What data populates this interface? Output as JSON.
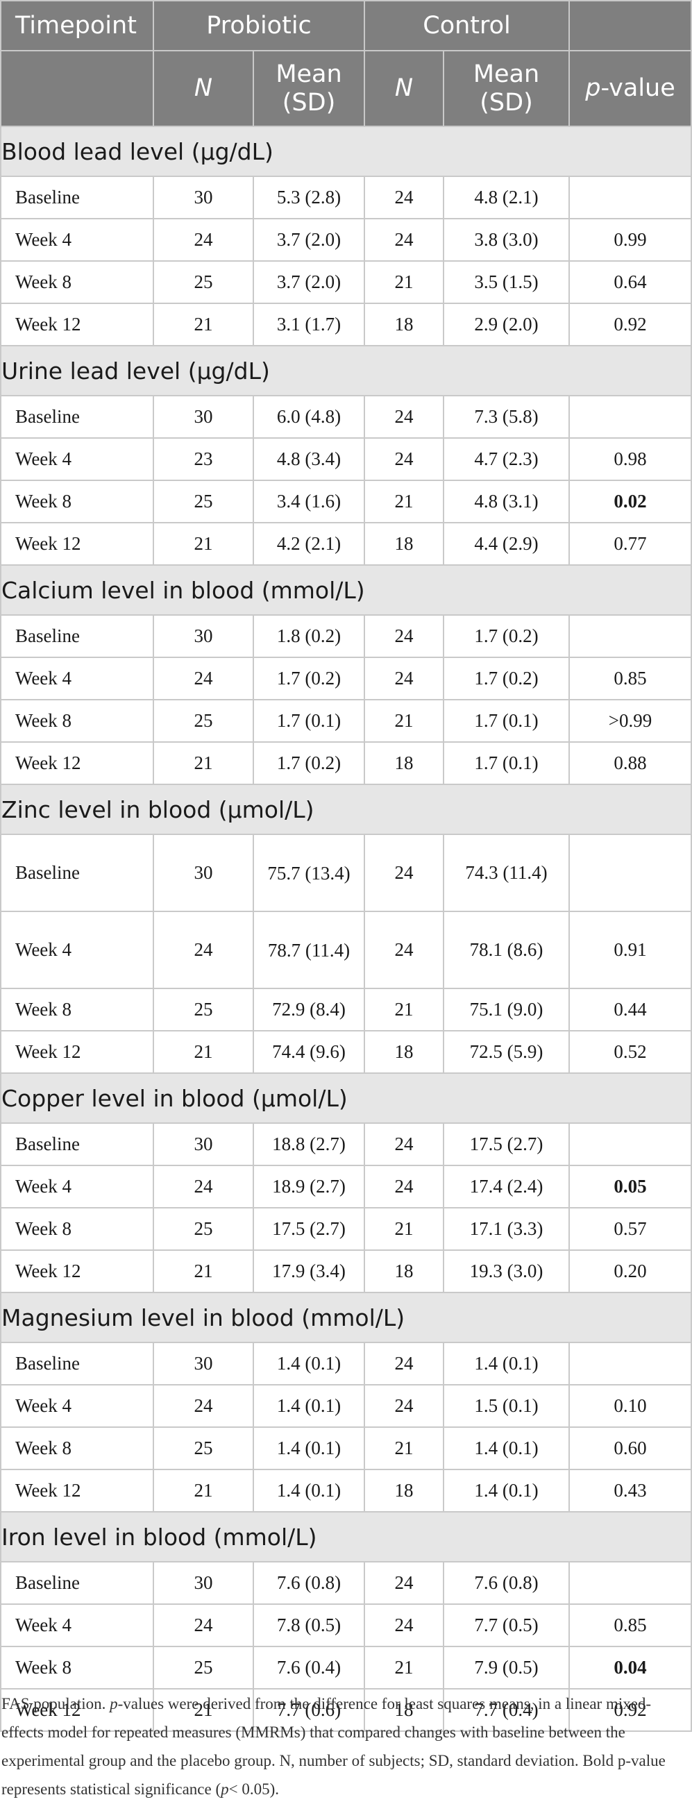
{
  "header": {
    "timepoint": "Timepoint",
    "probiotic": "Probiotic",
    "control": "Control",
    "n_label": "N",
    "mean_sd_line1": "Mean",
    "mean_sd_line2": "(SD)",
    "p_value_italic": "p",
    "p_value_rest": "-value"
  },
  "sections": [
    {
      "title": "Blood lead level (µg/dL)",
      "rows": [
        {
          "timepoint": "Baseline",
          "probiotic_n": "30",
          "probiotic_mean_sd": "5.3 (2.8)",
          "control_n": "24",
          "control_mean_sd": "4.8 (2.1)",
          "p_value": "",
          "bold": false
        },
        {
          "timepoint": "Week 4",
          "probiotic_n": "24",
          "probiotic_mean_sd": "3.7 (2.0)",
          "control_n": "24",
          "control_mean_sd": "3.8 (3.0)",
          "p_value": "0.99",
          "bold": false
        },
        {
          "timepoint": "Week 8",
          "probiotic_n": "25",
          "probiotic_mean_sd": "3.7 (2.0)",
          "control_n": "21",
          "control_mean_sd": "3.5 (1.5)",
          "p_value": "0.64",
          "bold": false
        },
        {
          "timepoint": "Week 12",
          "probiotic_n": "21",
          "probiotic_mean_sd": "3.1 (1.7)",
          "control_n": "18",
          "control_mean_sd": "2.9 (2.0)",
          "p_value": "0.92",
          "bold": false
        }
      ]
    },
    {
      "title": "Urine lead level (µg/dL)",
      "rows": [
        {
          "timepoint": "Baseline",
          "probiotic_n": "30",
          "probiotic_mean_sd": "6.0 (4.8)",
          "control_n": "24",
          "control_mean_sd": "7.3 (5.8)",
          "p_value": "",
          "bold": false
        },
        {
          "timepoint": "Week 4",
          "probiotic_n": "23",
          "probiotic_mean_sd": "4.8 (3.4)",
          "control_n": "24",
          "control_mean_sd": "4.7 (2.3)",
          "p_value": "0.98",
          "bold": false
        },
        {
          "timepoint": "Week 8",
          "probiotic_n": "25",
          "probiotic_mean_sd": "3.4 (1.6)",
          "control_n": "21",
          "control_mean_sd": "4.8 (3.1)",
          "p_value": "0.02",
          "bold": true
        },
        {
          "timepoint": "Week 12",
          "probiotic_n": "21",
          "probiotic_mean_sd": "4.2 (2.1)",
          "control_n": "18",
          "control_mean_sd": "4.4 (2.9)",
          "p_value": "0.77",
          "bold": false
        }
      ]
    },
    {
      "title": "Calcium level in blood (mmol/L)",
      "rows": [
        {
          "timepoint": "Baseline",
          "probiotic_n": "30",
          "probiotic_mean_sd": "1.8 (0.2)",
          "control_n": "24",
          "control_mean_sd": "1.7 (0.2)",
          "p_value": "",
          "bold": false
        },
        {
          "timepoint": "Week 4",
          "probiotic_n": "24",
          "probiotic_mean_sd": "1.7 (0.2)",
          "control_n": "24",
          "control_mean_sd": "1.7 (0.2)",
          "p_value": "0.85",
          "bold": false
        },
        {
          "timepoint": "Week 8",
          "probiotic_n": "25",
          "probiotic_mean_sd": "1.7 (0.1)",
          "control_n": "21",
          "control_mean_sd": "1.7 (0.1)",
          "p_value": ">0.99",
          "bold": false
        },
        {
          "timepoint": "Week 12",
          "probiotic_n": "21",
          "probiotic_mean_sd": "1.7 (0.2)",
          "control_n": "18",
          "control_mean_sd": "1.7 (0.1)",
          "p_value": "0.88",
          "bold": false
        }
      ]
    },
    {
      "title": "Zinc level in blood (µmol/L)",
      "rows": [
        {
          "timepoint": "Baseline",
          "probiotic_n": "30",
          "probiotic_mean_sd": "75.7 (13.4)",
          "control_n": "24",
          "control_mean_sd": "74.3 (11.4)",
          "p_value": "",
          "bold": false,
          "tall": true
        },
        {
          "timepoint": "Week 4",
          "probiotic_n": "24",
          "probiotic_mean_sd": "78.7 (11.4)",
          "control_n": "24",
          "control_mean_sd": "78.1 (8.6)",
          "p_value": "0.91",
          "bold": false,
          "tall": true
        },
        {
          "timepoint": "Week 8",
          "probiotic_n": "25",
          "probiotic_mean_sd": "72.9 (8.4)",
          "control_n": "21",
          "control_mean_sd": "75.1 (9.0)",
          "p_value": "0.44",
          "bold": false
        },
        {
          "timepoint": "Week 12",
          "probiotic_n": "21",
          "probiotic_mean_sd": "74.4 (9.6)",
          "control_n": "18",
          "control_mean_sd": "72.5 (5.9)",
          "p_value": "0.52",
          "bold": false
        }
      ]
    },
    {
      "title": "Copper level in blood (µmol/L)",
      "rows": [
        {
          "timepoint": "Baseline",
          "probiotic_n": "30",
          "probiotic_mean_sd": "18.8 (2.7)",
          "control_n": "24",
          "control_mean_sd": "17.5 (2.7)",
          "p_value": "",
          "bold": false
        },
        {
          "timepoint": "Week 4",
          "probiotic_n": "24",
          "probiotic_mean_sd": "18.9 (2.7)",
          "control_n": "24",
          "control_mean_sd": "17.4 (2.4)",
          "p_value": "0.05",
          "bold": true
        },
        {
          "timepoint": "Week 8",
          "probiotic_n": "25",
          "probiotic_mean_sd": "17.5 (2.7)",
          "control_n": "21",
          "control_mean_sd": "17.1 (3.3)",
          "p_value": "0.57",
          "bold": false
        },
        {
          "timepoint": "Week 12",
          "probiotic_n": "21",
          "probiotic_mean_sd": "17.9 (3.4)",
          "control_n": "18",
          "control_mean_sd": "19.3 (3.0)",
          "p_value": "0.20",
          "bold": false
        }
      ]
    },
    {
      "title": "Magnesium level in blood (mmol/L)",
      "rows": [
        {
          "timepoint": "Baseline",
          "probiotic_n": "30",
          "probiotic_mean_sd": "1.4 (0.1)",
          "control_n": "24",
          "control_mean_sd": "1.4 (0.1)",
          "p_value": "",
          "bold": false
        },
        {
          "timepoint": "Week 4",
          "probiotic_n": "24",
          "probiotic_mean_sd": "1.4 (0.1)",
          "control_n": "24",
          "control_mean_sd": "1.5 (0.1)",
          "p_value": "0.10",
          "bold": false
        },
        {
          "timepoint": "Week 8",
          "probiotic_n": "25",
          "probiotic_mean_sd": "1.4 (0.1)",
          "control_n": "21",
          "control_mean_sd": "1.4 (0.1)",
          "p_value": "0.60",
          "bold": false
        },
        {
          "timepoint": "Week 12",
          "probiotic_n": "21",
          "probiotic_mean_sd": "1.4 (0.1)",
          "control_n": "18",
          "control_mean_sd": "1.4 (0.1)",
          "p_value": "0.43",
          "bold": false
        }
      ]
    },
    {
      "title": "Iron level in blood (mmol/L)",
      "rows": [
        {
          "timepoint": "Baseline",
          "probiotic_n": "30",
          "probiotic_mean_sd": "7.6 (0.8)",
          "control_n": "24",
          "control_mean_sd": "7.6 (0.8)",
          "p_value": "",
          "bold": false
        },
        {
          "timepoint": "Week 4",
          "probiotic_n": "24",
          "probiotic_mean_sd": "7.8 (0.5)",
          "control_n": "24",
          "control_mean_sd": "7.7 (0.5)",
          "p_value": "0.85",
          "bold": false
        },
        {
          "timepoint": "Week 8",
          "probiotic_n": "25",
          "probiotic_mean_sd": "7.6 (0.4)",
          "control_n": "21",
          "control_mean_sd": "7.9 (0.5)",
          "p_value": "0.04",
          "bold": true
        },
        {
          "timepoint": "Week 12",
          "probiotic_n": "21",
          "probiotic_mean_sd": "7.7 (0.6)",
          "control_n": "18",
          "control_mean_sd": "7.7 (0.4)",
          "p_value": "0.92",
          "bold": false
        }
      ]
    }
  ],
  "footnote": {
    "part1": "FAS population. ",
    "p_italic_1": "p",
    "part2": "-values were derived from the difference for least squares means, in a linear mixed-effects model for repeated measures (MMRMs) that compared changes with baseline between the experimental group and the placebo group. N, number of subjects; SD, standard deviation. Bold p-value represents statistical significance (",
    "p_italic_2": "p",
    "part3": "< 0.05)."
  }
}
